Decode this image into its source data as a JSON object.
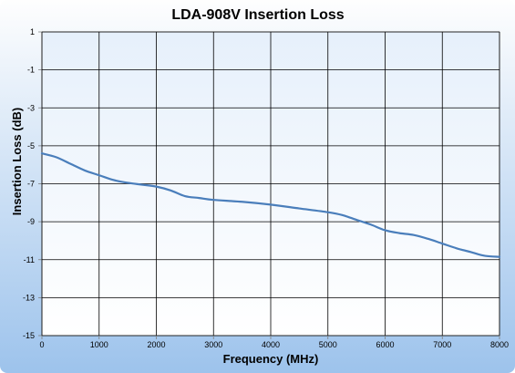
{
  "chart_data": {
    "type": "line",
    "title": "LDA-908V Insertion Loss",
    "xlabel": "Frequency (MHz)",
    "ylabel": "Insertion Loss (dB)",
    "xlim": [
      0,
      8000
    ],
    "ylim": [
      -15,
      1
    ],
    "xticks": [
      0,
      1000,
      2000,
      3000,
      4000,
      5000,
      6000,
      7000,
      8000
    ],
    "yticks": [
      1,
      -1,
      -3,
      -5,
      -7,
      -9,
      -11,
      -13,
      -15
    ],
    "grid": true,
    "legend": "none",
    "colors": {
      "line": "#4a7ebb",
      "plot_bg_top": "#e6f0fb",
      "plot_bg_bottom": "#ffffff",
      "page_bg_top": "#fefefe",
      "page_bg_bottom": "#9dc3ec"
    },
    "series": [
      {
        "x": [
          0,
          250,
          500,
          750,
          1000,
          1250,
          1500,
          1750,
          2000,
          2250,
          2500,
          2750,
          3000,
          3500,
          4000,
          4500,
          5000,
          5250,
          5500,
          5750,
          6000,
          6250,
          6500,
          6750,
          7000,
          7250,
          7500,
          7750,
          8000
        ],
        "y": [
          -5.4,
          -5.6,
          -5.95,
          -6.3,
          -6.55,
          -6.8,
          -6.95,
          -7.05,
          -7.15,
          -7.35,
          -7.65,
          -7.75,
          -7.85,
          -7.95,
          -8.1,
          -8.3,
          -8.5,
          -8.65,
          -8.9,
          -9.15,
          -9.45,
          -9.6,
          -9.7,
          -9.9,
          -10.15,
          -10.4,
          -10.6,
          -10.8,
          -10.85
        ]
      }
    ]
  }
}
